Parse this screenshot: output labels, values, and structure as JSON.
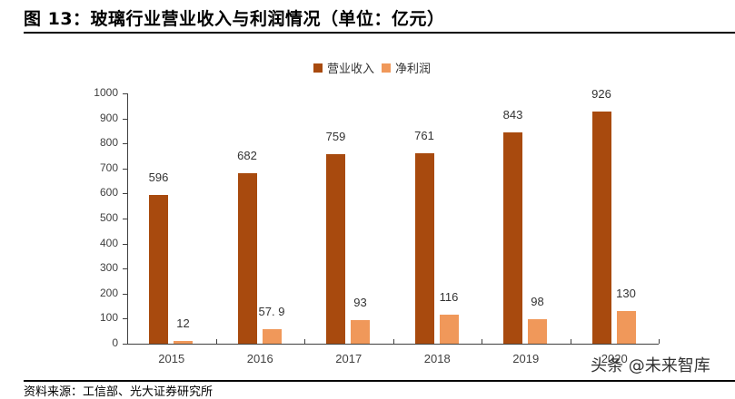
{
  "header": {
    "title": "图 13：玻璃行业营业收入与利润情况（单位：亿元）"
  },
  "legend": [
    {
      "label": "营业收入",
      "color": "#A84A0E"
    },
    {
      "label": "净利润",
      "color": "#F0985A"
    }
  ],
  "y_axis": {
    "ticks": [
      "0",
      "100",
      "200",
      "300",
      "400",
      "500",
      "600",
      "700",
      "800",
      "900",
      "1000"
    ]
  },
  "watermark": "头条 @未来智库",
  "footer": {
    "source": "资料来源：工信部、光大证券研究所"
  },
  "chart_data": {
    "type": "bar",
    "title": "玻璃行业营业收入与利润情况（单位：亿元）",
    "xlabel": "",
    "ylabel": "",
    "ylim": [
      0,
      1000
    ],
    "yticks": [
      0,
      100,
      200,
      300,
      400,
      500,
      600,
      700,
      800,
      900,
      1000
    ],
    "grid": false,
    "legend_position": "top",
    "categories": [
      "2015",
      "2016",
      "2017",
      "2018",
      "2019",
      "2020"
    ],
    "series": [
      {
        "name": "营业收入",
        "color": "#A84A0E",
        "values": [
          596,
          682,
          759,
          761,
          843,
          926
        ],
        "labels": [
          "596",
          "682",
          "759",
          "761",
          "843",
          "926"
        ]
      },
      {
        "name": "净利润",
        "color": "#F0985A",
        "values": [
          12,
          57.9,
          93,
          116,
          98,
          130
        ],
        "labels": [
          "12",
          "57. 9",
          "93",
          "116",
          "98",
          "130"
        ]
      }
    ]
  }
}
